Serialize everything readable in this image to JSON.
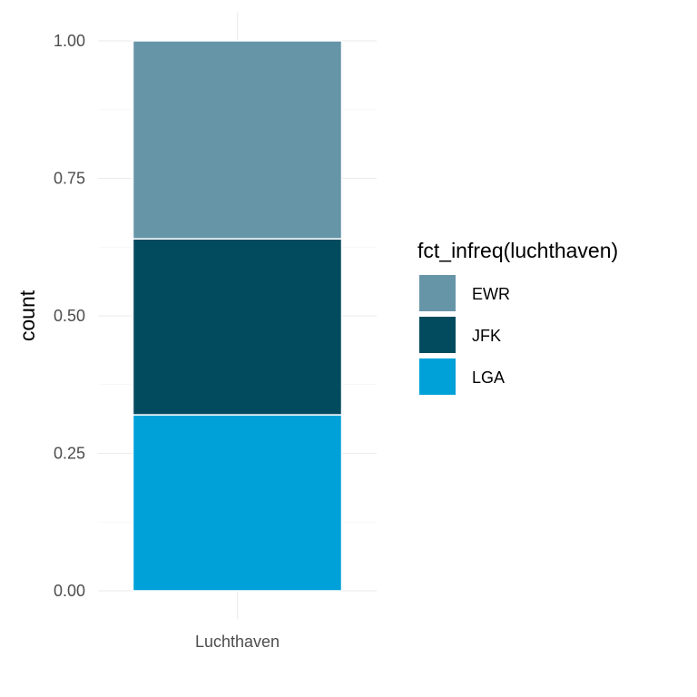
{
  "chart_data": {
    "type": "bar",
    "stacked": true,
    "categories": [
      "Luchthaven"
    ],
    "series": [
      {
        "name": "EWR",
        "values": [
          0.36
        ],
        "color": "#6795a8"
      },
      {
        "name": "JFK",
        "values": [
          0.32
        ],
        "color": "#024b5e"
      },
      {
        "name": "LGA",
        "values": [
          0.32
        ],
        "color": "#00a1d8"
      }
    ],
    "ylabel": "count",
    "xlabel": "",
    "ylim": [
      0,
      1
    ],
    "yticks": [
      "0.00",
      "0.25",
      "0.50",
      "0.75",
      "1.00"
    ],
    "legend": {
      "title": "fct_infreq(luchthaven)",
      "placement": "right"
    },
    "grid": true
  }
}
